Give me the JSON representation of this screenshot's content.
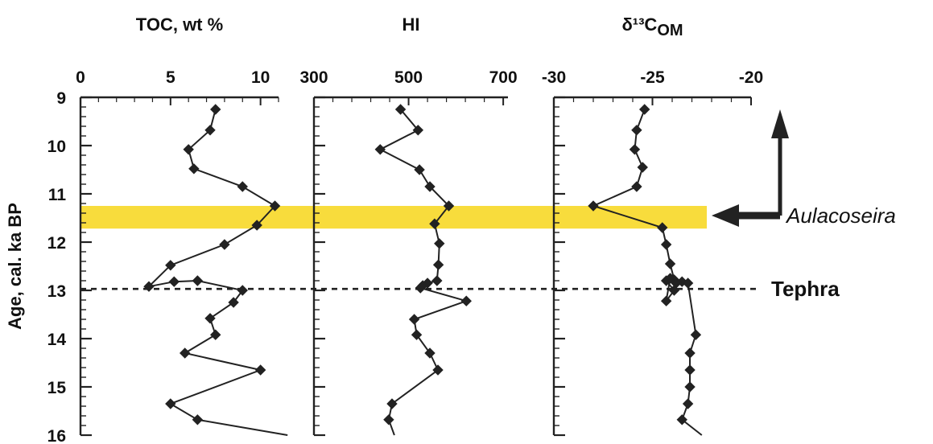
{
  "chart_data": {
    "type": "line",
    "ylabel": "Age, cal. ka BP",
    "ylim": [
      9,
      16
    ],
    "yticks": [
      "9",
      "10",
      "11",
      "12",
      "13",
      "14",
      "15",
      "16"
    ],
    "y_reversed": true,
    "colors": {
      "line": "#222222",
      "marker": "#222222",
      "highlight": "#f8dc3c",
      "text": "#111111"
    },
    "highlight_band": {
      "y_range": [
        11.25,
        11.72
      ]
    },
    "annotations": {
      "aulacoseira": {
        "text": "Aulacoseira",
        "y": 11.4
      },
      "tephra": {
        "text": "Tephra",
        "y": 12.97
      }
    },
    "panels": [
      {
        "title": "TOC, wt %",
        "xlim": [
          0,
          11
        ],
        "xticks": [
          "0",
          "5",
          "10"
        ],
        "x": [
          7.5,
          7.2,
          6.0,
          6.3,
          9.0,
          10.8,
          9.8,
          8.0,
          5.0,
          3.8,
          5.2,
          6.5,
          9.0,
          8.5,
          7.2,
          7.5,
          5.8,
          10.0,
          5.0,
          6.5,
          11.5
        ],
        "y": [
          9.25,
          9.68,
          10.08,
          10.48,
          10.85,
          11.25,
          11.65,
          12.05,
          12.48,
          12.92,
          12.82,
          12.8,
          13.0,
          13.25,
          13.58,
          13.92,
          14.3,
          14.65,
          15.35,
          15.68,
          16.0
        ]
      },
      {
        "title": "HI",
        "xlim": [
          300,
          710
        ],
        "xticks": [
          "300",
          "500",
          "700"
        ],
        "x": [
          483,
          520,
          440,
          523,
          545,
          585,
          555,
          565,
          563,
          560,
          540,
          530,
          525,
          622,
          512,
          517,
          545,
          562,
          465,
          458,
          470
        ],
        "y": [
          9.25,
          9.68,
          10.08,
          10.5,
          10.85,
          11.25,
          11.62,
          12.03,
          12.47,
          12.8,
          12.85,
          12.9,
          12.95,
          13.22,
          13.6,
          13.92,
          14.3,
          14.65,
          15.35,
          15.68,
          16.0
        ]
      },
      {
        "title": "δ¹³C",
        "title_subscript": "OM",
        "xlim": [
          -30,
          -20
        ],
        "xticks": [
          "-30",
          "-25",
          "-20"
        ],
        "x": [
          -25.4,
          -25.8,
          -25.9,
          -25.5,
          -25.8,
          -28.0,
          -24.5,
          -24.3,
          -24.1,
          -23.9,
          -23.5,
          -23.8,
          -24.3,
          -23.9,
          -24.3,
          -24.1,
          -23.2,
          -22.8,
          -23.1,
          -23.1,
          -23.1,
          -23.2,
          -23.5,
          -22.5
        ],
        "y": [
          9.25,
          9.68,
          10.08,
          10.45,
          10.85,
          11.25,
          11.7,
          12.05,
          12.45,
          12.78,
          12.82,
          12.85,
          12.8,
          13.0,
          13.22,
          12.75,
          12.85,
          13.92,
          14.3,
          14.65,
          15.0,
          15.35,
          15.68,
          16.0
        ]
      }
    ]
  }
}
